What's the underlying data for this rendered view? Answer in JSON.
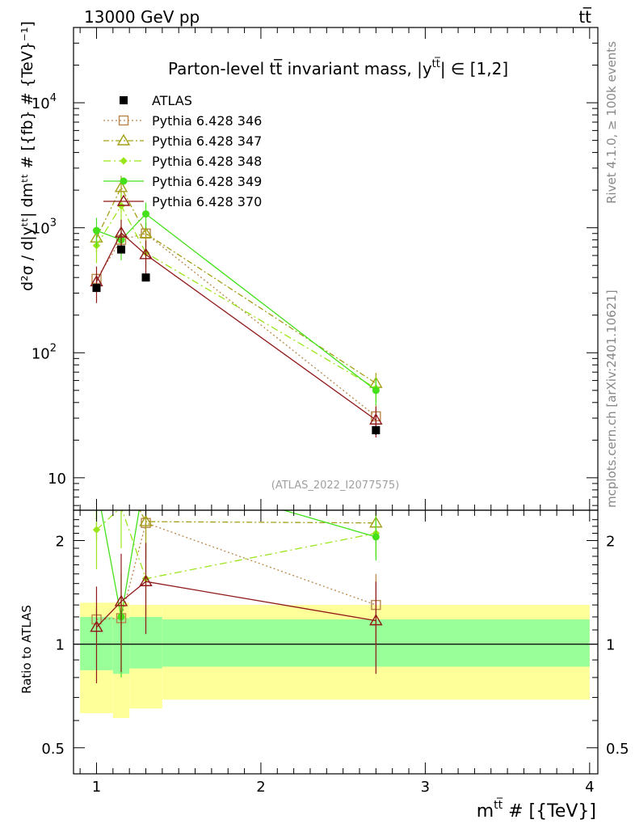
{
  "header": {
    "energy": "13000 GeV pp",
    "process": "tt̅"
  },
  "side_text": {
    "rivet": "Rivet 4.1.0, ≥ 100k events",
    "source": "mcplots.cern.ch [arXiv:2401.10621]"
  },
  "chart_data": {
    "type": "scatter",
    "title": "Parton-level t̅t invariant mass, |y^{t̅t}| ∈ [1,2]",
    "title_text": "Parton-level tt̅ invariant mass, |y",
    "title_sup": "tt̅",
    "title_tail": "| ∈ [1,2]",
    "watermark": "(ATLAS_2022_I2077575)",
    "xlabel": "m^{tt̅} # [{TeV}]",
    "xlabel_main": "m",
    "xlabel_sup": "tt̅",
    "xlabel_tail": " # [{TeV}]",
    "ylabel_main": "d²σ / d|yᵗᵗ| dmᵗᵗ # [{fb} # {TeV}⁻¹]",
    "ylabel_ratio": "Ratio to ATLAS",
    "xlim": [
      0.86,
      4.05
    ],
    "ylim_main": [
      5.5,
      40000
    ],
    "ylim_ratio": [
      0.42,
      2.45
    ],
    "x_ticks": [
      1,
      2,
      3,
      4
    ],
    "x_tick_labels": [
      "1",
      "2",
      "3",
      "4"
    ],
    "y_ticks_main": [
      {
        "value": 10000,
        "base": "10",
        "exp": "4"
      },
      {
        "value": 1000,
        "base": "10",
        "exp": "3"
      },
      {
        "value": 100,
        "base": "10",
        "exp": "2"
      },
      {
        "value": 10,
        "base": "10",
        "exp": ""
      }
    ],
    "y_ticks_ratio": [
      {
        "value": 2,
        "label": "2"
      },
      {
        "value": 1,
        "label": "1"
      },
      {
        "value": 0.5,
        "label": "0.5"
      }
    ],
    "data": {
      "name": "ATLAS",
      "x": [
        1.0,
        1.15,
        1.3,
        2.7
      ],
      "y": [
        330,
        670,
        400,
        24
      ],
      "yerr": [
        20,
        40,
        25,
        2
      ],
      "bins": [
        [
          0.9,
          1.1
        ],
        [
          1.1,
          1.2
        ],
        [
          1.2,
          1.4
        ],
        [
          1.4,
          4.0
        ]
      ],
      "band_stat": [
        [
          0.84,
          1.2
        ],
        [
          0.82,
          1.19
        ],
        [
          0.85,
          1.2
        ],
        [
          0.86,
          1.18
        ]
      ],
      "band_total": [
        [
          0.63,
          1.32
        ],
        [
          0.61,
          1.32
        ],
        [
          0.65,
          1.3
        ],
        [
          0.69,
          1.3
        ]
      ]
    },
    "series": [
      {
        "name": "Pythia 6.428 346",
        "color": "#b8864a",
        "marker": "square",
        "dash": "2,3",
        "x": [
          1.0,
          1.15,
          1.3,
          2.7
        ],
        "y": [
          390,
          800,
          900,
          31
        ],
        "yerr": [
          40,
          150,
          200,
          8
        ],
        "ratio": [
          1.18,
          1.19,
          2.25,
          1.3
        ],
        "ratio_err": [
          0.1,
          0.2,
          0.5,
          0.3
        ]
      },
      {
        "name": "Pythia 6.428 347",
        "color": "#a3a017",
        "marker": "triangle",
        "dash": "7,3,2,3",
        "x": [
          1.0,
          1.15,
          1.3,
          2.7
        ],
        "y": [
          830,
          2100,
          900,
          57
        ],
        "yerr": [
          200,
          500,
          200,
          12
        ],
        "ratio": [
          2.5,
          3.1,
          2.27,
          2.25
        ],
        "ratio_err": [
          0.5,
          0.7,
          0.5,
          0.3
        ]
      },
      {
        "name": "Pythia 6.428 348",
        "color": "#9be51a",
        "marker": "diamond",
        "dash": "9,4,2,4",
        "x": [
          1.0,
          1.15,
          1.3,
          2.7
        ],
        "y": [
          720,
          1500,
          630,
          52
        ],
        "yerr": [
          200,
          400,
          150,
          12
        ],
        "ratio": [
          2.15,
          2.5,
          1.55,
          2.1
        ],
        "ratio_err": [
          0.5,
          0.6,
          0.4,
          0.3
        ]
      },
      {
        "name": "Pythia 6.428 349",
        "color": "#44e01a",
        "marker": "circle",
        "dash": "",
        "x": [
          1.0,
          1.15,
          1.3,
          2.7
        ],
        "y": [
          950,
          800,
          1290,
          50
        ],
        "yerr": [
          250,
          250,
          300,
          12
        ],
        "ratio": [
          2.9,
          1.2,
          3.2,
          2.05
        ],
        "ratio_err": [
          0.6,
          0.4,
          0.6,
          0.3
        ]
      },
      {
        "name": "Pythia 6.428 370",
        "color": "#8f1818",
        "marker": "triangle",
        "dash": "",
        "x": [
          1.0,
          1.15,
          1.3,
          2.7
        ],
        "y": [
          370,
          910,
          610,
          29
        ],
        "yerr": [
          120,
          250,
          180,
          8
        ],
        "ratio": [
          1.12,
          1.33,
          1.52,
          1.17
        ],
        "ratio_err": [
          0.35,
          0.5,
          0.45,
          0.35
        ]
      }
    ]
  }
}
